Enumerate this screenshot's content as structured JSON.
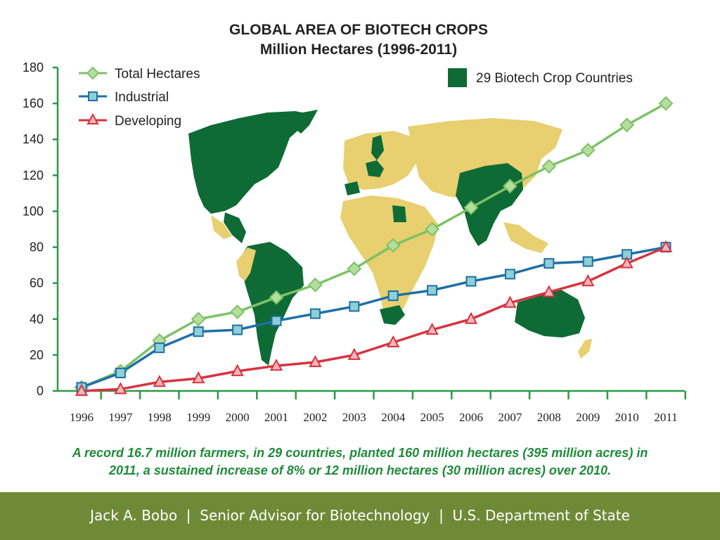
{
  "chart_data": {
    "type": "line",
    "title": "GLOBAL AREA OF BIOTECH CROPS",
    "subtitle": "Million Hectares (1996-2011)",
    "x": [
      "1996",
      "1997",
      "1998",
      "1999",
      "2000",
      "2001",
      "2002",
      "2003",
      "2004",
      "2005",
      "2006",
      "2007",
      "2008",
      "2009",
      "2010",
      "2011"
    ],
    "ylim": [
      0,
      180
    ],
    "yticks": [
      0,
      20,
      40,
      60,
      80,
      100,
      120,
      140,
      160,
      180
    ],
    "grid": false,
    "legend_position": "top-left",
    "series": [
      {
        "name": "Total Hectares",
        "color": "#7dc266",
        "marker": "diamond",
        "values": [
          2,
          11,
          28,
          40,
          44,
          52,
          59,
          68,
          81,
          90,
          102,
          114,
          125,
          134,
          148,
          160
        ]
      },
      {
        "name": "Industrial",
        "color": "#1f6fa6",
        "marker": "square",
        "values": [
          2,
          10,
          24,
          33,
          34,
          39,
          43,
          47,
          53,
          56,
          61,
          65,
          71,
          72,
          76,
          80
        ]
      },
      {
        "name": "Developing",
        "color": "#d6333f",
        "marker": "triangle",
        "values": [
          0,
          1,
          5,
          7,
          11,
          14,
          16,
          20,
          27,
          34,
          40,
          49,
          55,
          61,
          71,
          80
        ]
      }
    ],
    "map_legend": {
      "label": "29 Biotech Crop Countries",
      "color": "#0e6b35"
    },
    "map_other_color": "#e8cf6f"
  },
  "caption_line1": "A record 16.7 million farmers, in 29 countries, planted 160 million hectares (395 million acres) in",
  "caption_line2": "2011, a sustained increase of 8% or 12 million hectares (30 million acres) over 2010.",
  "footer_text": "Jack A. Bobo  |  Senior Advisor for Biotechnology  |  U.S. Department of State"
}
